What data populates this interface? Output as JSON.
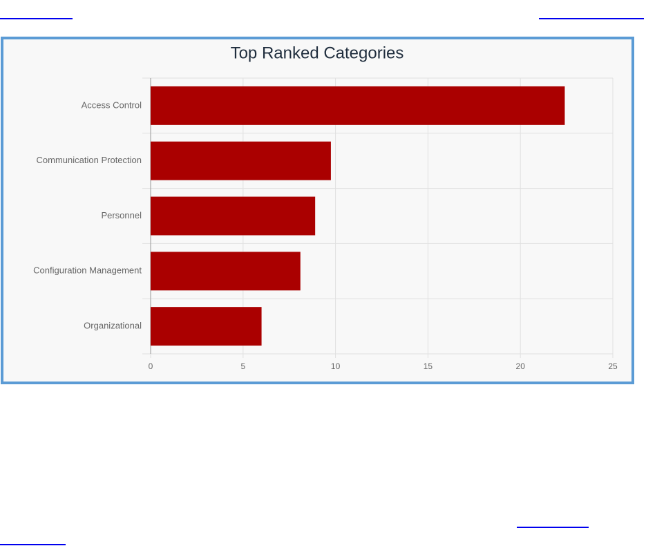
{
  "chart_data": {
    "type": "hbar",
    "title": "Top Ranked Categories",
    "categories": [
      "Access Control",
      "Communication Protection",
      "Personnel",
      "Configuration Management",
      "Organizational"
    ],
    "values": [
      22.4,
      9.75,
      8.9,
      8.1,
      6.0
    ],
    "color": "#aa0000",
    "xlim": [
      0,
      25
    ],
    "xticks": [
      0,
      5,
      10,
      15,
      20,
      25
    ],
    "grid": true
  }
}
